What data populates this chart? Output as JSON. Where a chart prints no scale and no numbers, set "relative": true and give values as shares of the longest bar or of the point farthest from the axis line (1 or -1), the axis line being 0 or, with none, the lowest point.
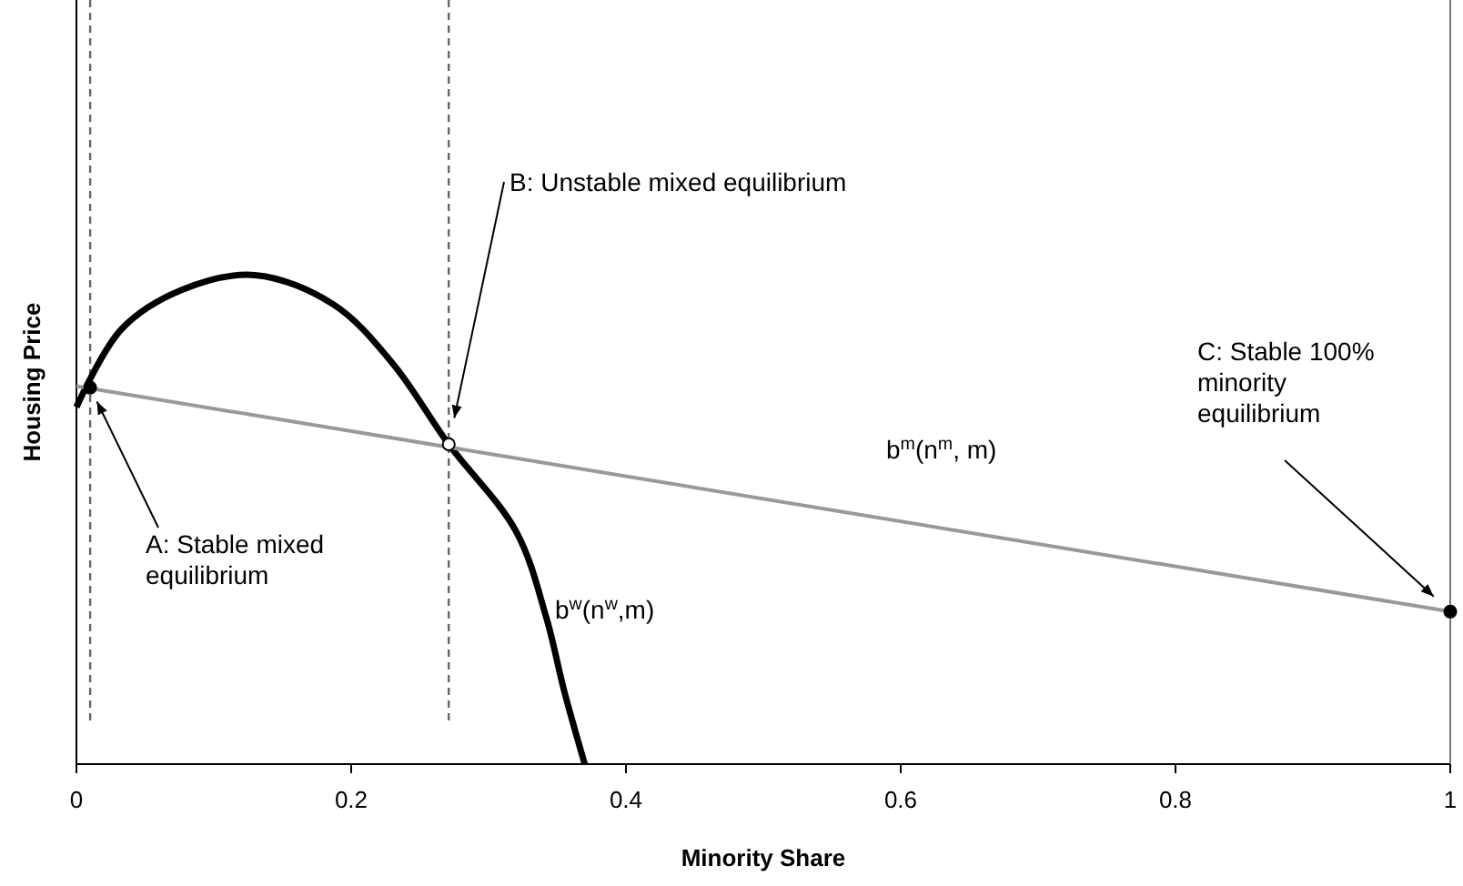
{
  "chart_data": {
    "type": "line",
    "relative": true,
    "xlabel": "Minority Share",
    "ylabel": "Housing Price",
    "xlim": [
      0,
      1
    ],
    "xticks": [
      0,
      0.2,
      0.4,
      0.6,
      0.8,
      1
    ],
    "grid": false,
    "marker": "none",
    "line_style": "solid",
    "series": [
      {
        "name": "b$^{w}$(n$^{w}$,m)",
        "color": "#000000",
        "x": [
          0,
          0.033,
          0.077,
          0.13,
          0.187,
          0.23,
          0.271,
          0.32,
          0.342,
          0.355,
          0.37
        ],
        "values": [
          0.73,
          0.89,
          0.97,
          1,
          0.94,
          0.82,
          0.654,
          0.476,
          0.3,
          0.15,
          0
        ]
      },
      {
        "name": "b$^{m}$(n$^{m}$, m)",
        "color": "#999999",
        "x": [
          0,
          1
        ],
        "values": [
          0.773,
          0.312
        ]
      },
      {
        "type": "scatter",
        "marker": "circle",
        "x": [
          0.01,
          0.271,
          1
        ],
        "values": [
          0.77,
          0.654,
          0.312
        ],
        "colors": [
          "#000000",
          "#ffffff",
          "#000000"
        ]
      }
    ],
    "ref_lines": [
      {
        "axis": "x",
        "value": 0.01,
        "color": "#666666",
        "line_style": "dashed"
      },
      {
        "axis": "x",
        "value": 0.271,
        "color": "#666666",
        "line_style": "dashed"
      }
    ],
    "annotations": [
      "A: Stable mixed\nequilibrium",
      "B: Unstable mixed equilibrium",
      "C: Stable 100%\nminority\nequilibrium"
    ]
  }
}
